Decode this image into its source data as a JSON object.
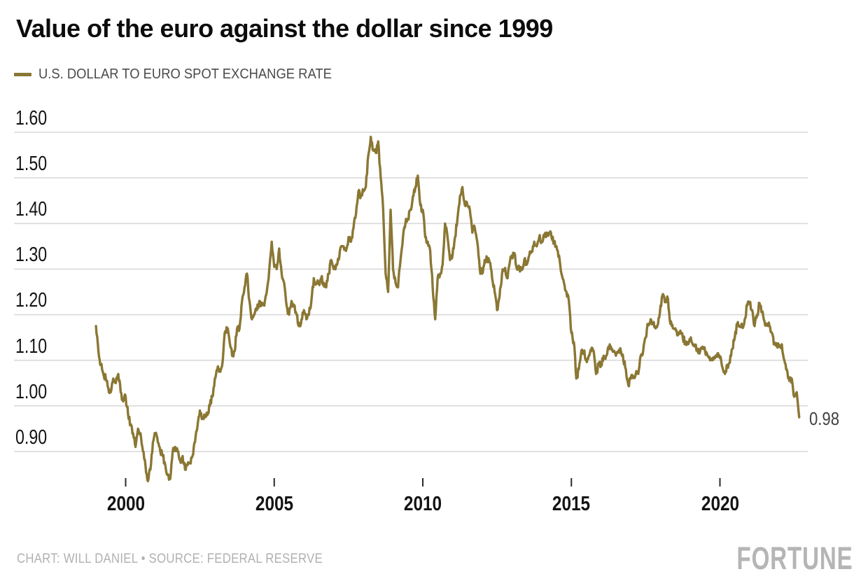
{
  "header": {
    "title": "Value of the euro against the dollar since 1999"
  },
  "legend": {
    "label": "U.S. DOLLAR TO EURO SPOT EXCHANGE RATE"
  },
  "footer": {
    "credit": "CHART: WILL DANIEL • SOURCE: FEDERAL RESERVE",
    "logo": "FORTUNE"
  },
  "colors": {
    "line": "#8a7733",
    "grid": "#d9d9d9",
    "tick": "#2a2a2a",
    "axis_text": "#141414",
    "legend_text": "#4a4a4a",
    "muted_text": "#b1b1b1",
    "end_label_text": "#404040",
    "background": "#ffffff"
  },
  "chart_data": {
    "type": "line",
    "title": "Value of the euro against the dollar since 1999",
    "series_name": "U.S. Dollar to Euro Spot Exchange Rate",
    "xlabel": "",
    "ylabel": "",
    "x_unit": "monthly, Jan 1999 – Sep 2022",
    "x_start_year": 1999,
    "x_interval_months": 1,
    "x_tick_years": [
      2000,
      2005,
      2010,
      2015,
      2020
    ],
    "x_tick_labels": [
      "2000",
      "2005",
      "2010",
      "2015",
      "2020"
    ],
    "y_tick_values": [
      1.6,
      1.5,
      1.4,
      1.3,
      1.2,
      1.1,
      1.0,
      0.9
    ],
    "y_ticks": [
      "1.60",
      "1.50",
      "1.40",
      "1.30",
      "1.20",
      "1.10",
      "1.00",
      "0.90"
    ],
    "ylim": [
      0.82,
      1.62
    ],
    "xlim_years": [
      1998.9,
      2023.0
    ],
    "grid": "horizontal",
    "legend_position": "top-left",
    "end_label": "0.98",
    "last_value": 0.98,
    "values": [
      1.175,
      1.12,
      1.09,
      1.07,
      1.06,
      1.04,
      1.03,
      1.06,
      1.05,
      1.07,
      1.03,
      1.01,
      1.02,
      0.98,
      0.96,
      0.94,
      0.91,
      0.95,
      0.94,
      0.9,
      0.87,
      0.835,
      0.86,
      0.92,
      0.94,
      0.92,
      0.9,
      0.89,
      0.87,
      0.85,
      0.84,
      0.9,
      0.91,
      0.9,
      0.88,
      0.89,
      0.86,
      0.87,
      0.875,
      0.89,
      0.92,
      0.955,
      0.99,
      0.975,
      0.98,
      0.98,
      1.0,
      1.02,
      1.06,
      1.08,
      1.08,
      1.09,
      1.16,
      1.17,
      1.14,
      1.11,
      1.12,
      1.17,
      1.17,
      1.23,
      1.26,
      1.29,
      1.23,
      1.19,
      1.2,
      1.21,
      1.23,
      1.22,
      1.22,
      1.25,
      1.3,
      1.36,
      1.305,
      1.3,
      1.345,
      1.29,
      1.27,
      1.22,
      1.2,
      1.23,
      1.22,
      1.2,
      1.175,
      1.19,
      1.21,
      1.19,
      1.2,
      1.23,
      1.28,
      1.27,
      1.27,
      1.28,
      1.27,
      1.26,
      1.29,
      1.32,
      1.3,
      1.31,
      1.32,
      1.35,
      1.35,
      1.34,
      1.37,
      1.36,
      1.39,
      1.42,
      1.47,
      1.46,
      1.47,
      1.48,
      1.55,
      1.59,
      1.56,
      1.555,
      1.58,
      1.5,
      1.43,
      1.29,
      1.25,
      1.43,
      1.3,
      1.27,
      1.26,
      1.32,
      1.37,
      1.4,
      1.41,
      1.43,
      1.46,
      1.48,
      1.505,
      1.44,
      1.43,
      1.37,
      1.36,
      1.34,
      1.26,
      1.19,
      1.28,
      1.29,
      1.31,
      1.4,
      1.37,
      1.32,
      1.33,
      1.37,
      1.41,
      1.46,
      1.48,
      1.44,
      1.44,
      1.43,
      1.38,
      1.39,
      1.36,
      1.3,
      1.29,
      1.32,
      1.32,
      1.315,
      1.28,
      1.25,
      1.21,
      1.24,
      1.29,
      1.3,
      1.28,
      1.31,
      1.33,
      1.335,
      1.3,
      1.3,
      1.3,
      1.32,
      1.31,
      1.33,
      1.34,
      1.36,
      1.35,
      1.37,
      1.36,
      1.37,
      1.38,
      1.38,
      1.37,
      1.36,
      1.35,
      1.33,
      1.29,
      1.27,
      1.25,
      1.23,
      1.16,
      1.14,
      1.06,
      1.08,
      1.12,
      1.12,
      1.1,
      1.11,
      1.12,
      1.12,
      1.07,
      1.09,
      1.09,
      1.11,
      1.11,
      1.13,
      1.13,
      1.12,
      1.11,
      1.12,
      1.12,
      1.1,
      1.08,
      1.045,
      1.06,
      1.065,
      1.07,
      1.07,
      1.11,
      1.12,
      1.15,
      1.18,
      1.19,
      1.18,
      1.17,
      1.18,
      1.22,
      1.245,
      1.23,
      1.235,
      1.18,
      1.17,
      1.17,
      1.155,
      1.165,
      1.15,
      1.14,
      1.14,
      1.145,
      1.135,
      1.13,
      1.12,
      1.12,
      1.13,
      1.12,
      1.11,
      1.1,
      1.105,
      1.105,
      1.115,
      1.105,
      1.085,
      1.07,
      1.09,
      1.095,
      1.125,
      1.15,
      1.18,
      1.175,
      1.175,
      1.19,
      1.22,
      1.225,
      1.21,
      1.175,
      1.2,
      1.225,
      1.205,
      1.185,
      1.18,
      1.175,
      1.16,
      1.135,
      1.13,
      1.13,
      1.135,
      1.1,
      1.08,
      1.055,
      1.06,
      1.02,
      1.03,
      0.975
    ]
  }
}
